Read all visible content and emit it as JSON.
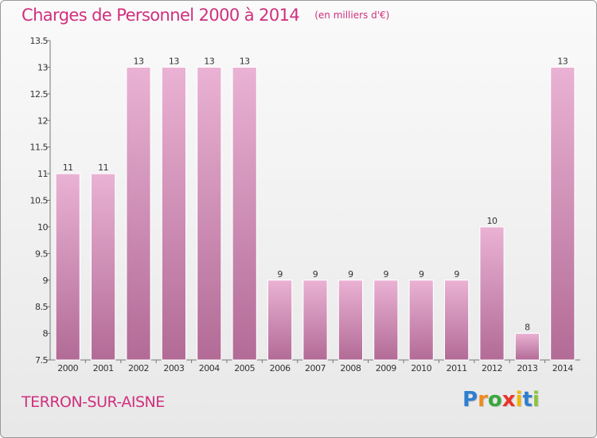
{
  "title": "Charges de Personnel 2000 à 2014",
  "subtitle": "(en milliers d'€)",
  "commune": "TERRON-SUR-AISNE",
  "brand": {
    "letters": [
      "P",
      "r",
      "o",
      "x",
      "i",
      "t",
      "i"
    ],
    "colors": [
      "#2f7fd0",
      "#f08a1c",
      "#39a83a",
      "#e8342a",
      "#f2b600",
      "#2f7fd0",
      "#8bc53f"
    ]
  },
  "colors": {
    "accent": "#d0307e",
    "bar_top": "#eab2d4",
    "bar_bottom": "#b26b96"
  },
  "chart_data": {
    "type": "bar",
    "categories": [
      "2000",
      "2001",
      "2002",
      "2003",
      "2004",
      "2005",
      "2006",
      "2007",
      "2008",
      "2009",
      "2010",
      "2011",
      "2012",
      "2013",
      "2014"
    ],
    "values": [
      11,
      11,
      13,
      13,
      13,
      13,
      9,
      9,
      9,
      9,
      9,
      9,
      10,
      8,
      13
    ],
    "data_labels": [
      "11",
      "11",
      "13",
      "13",
      "13",
      "13",
      "9",
      "9",
      "9",
      "9",
      "9",
      "9",
      "10",
      "8",
      "13"
    ],
    "title": "Charges de Personnel 2000 à 2014",
    "subtitle": "(en milliers d'€)",
    "xlabel": "",
    "ylabel": "",
    "ylim": [
      7.5,
      13.5
    ],
    "yticks": [
      7.5,
      8,
      8.5,
      9,
      9.5,
      10,
      10.5,
      11,
      11.5,
      12,
      12.5,
      13,
      13.5
    ],
    "ytick_labels": [
      "7.5",
      "8",
      "8.5",
      "9",
      "9.5",
      "10",
      "10.5",
      "11",
      "11.5",
      "12",
      "12.5",
      "13",
      "13.5"
    ],
    "grid": false,
    "legend": "none"
  }
}
